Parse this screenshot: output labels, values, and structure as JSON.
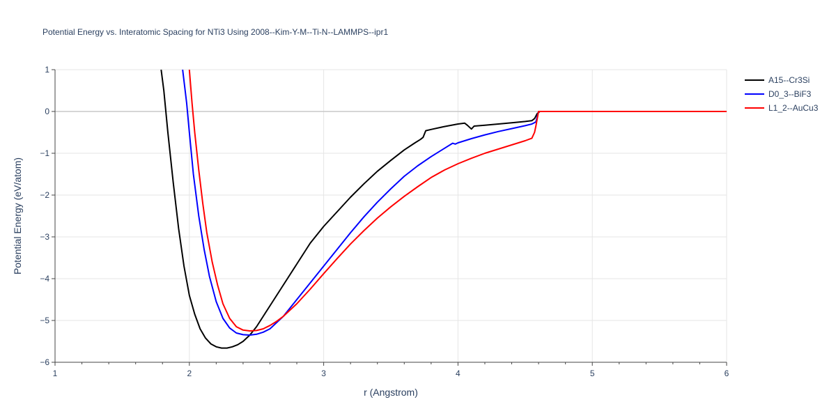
{
  "chart_data": {
    "type": "line",
    "title": "Potential Energy vs. Interatomic Spacing for NTi3 Using 2008--Kim-Y-M--Ti-N--LAMMPS--ipr1",
    "xlabel": "r (Angstrom)",
    "ylabel": "Potential Energy (eV/atom)",
    "xlim": [
      1,
      6
    ],
    "ylim": [
      -6,
      1
    ],
    "xticks": [
      1,
      2,
      3,
      4,
      5,
      6
    ],
    "xtick_labels": [
      "1",
      "2",
      "3",
      "4",
      "5",
      "6"
    ],
    "yticks": [
      1,
      0,
      -1,
      -2,
      -3,
      -4,
      -5,
      -6
    ],
    "ytick_labels": [
      "1",
      "0",
      "−1",
      "−2",
      "−3",
      "−4",
      "−5",
      "−6"
    ],
    "grid": true,
    "legend_position": "top-right",
    "series": [
      {
        "name": "A15--Cr3Si",
        "color": "#000000",
        "x": [
          1.79,
          1.81,
          1.84,
          1.88,
          1.92,
          1.96,
          2.0,
          2.04,
          2.08,
          2.12,
          2.16,
          2.2,
          2.24,
          2.28,
          2.32,
          2.36,
          2.4,
          2.45,
          2.5,
          2.55,
          2.6,
          2.7,
          2.8,
          2.9,
          3.0,
          3.1,
          3.2,
          3.3,
          3.4,
          3.5,
          3.6,
          3.68,
          3.72,
          3.74,
          3.76,
          3.8,
          3.9,
          4.0,
          4.05,
          4.07,
          4.1,
          4.12,
          4.2,
          4.3,
          4.4,
          4.5,
          4.55,
          4.57,
          4.59,
          4.61,
          5.0,
          5.5,
          6.0
        ],
        "y": [
          1.0,
          0.5,
          -0.5,
          -1.7,
          -2.8,
          -3.7,
          -4.4,
          -4.85,
          -5.2,
          -5.42,
          -5.56,
          -5.63,
          -5.66,
          -5.66,
          -5.63,
          -5.58,
          -5.5,
          -5.35,
          -5.15,
          -4.9,
          -4.65,
          -4.15,
          -3.65,
          -3.15,
          -2.75,
          -2.4,
          -2.05,
          -1.73,
          -1.43,
          -1.17,
          -0.92,
          -0.75,
          -0.67,
          -0.62,
          -0.46,
          -0.43,
          -0.36,
          -0.3,
          -0.28,
          -0.33,
          -0.42,
          -0.35,
          -0.33,
          -0.3,
          -0.27,
          -0.24,
          -0.22,
          -0.17,
          -0.05,
          0.0,
          0.0,
          0.0,
          0.0
        ]
      },
      {
        "name": "D0_3--BiF3",
        "color": "#0000ff",
        "x": [
          1.95,
          1.98,
          2.0,
          2.03,
          2.07,
          2.11,
          2.15,
          2.2,
          2.25,
          2.3,
          2.35,
          2.4,
          2.45,
          2.5,
          2.55,
          2.6,
          2.7,
          2.8,
          2.9,
          3.0,
          3.1,
          3.2,
          3.3,
          3.4,
          3.5,
          3.6,
          3.7,
          3.8,
          3.9,
          3.96,
          3.98,
          4.0,
          4.1,
          4.2,
          4.3,
          4.4,
          4.5,
          4.55,
          4.58,
          4.6,
          5.0,
          5.5,
          6.0
        ],
        "y": [
          1.0,
          0.2,
          -0.5,
          -1.5,
          -2.5,
          -3.3,
          -3.95,
          -4.55,
          -4.95,
          -5.18,
          -5.3,
          -5.34,
          -5.35,
          -5.33,
          -5.28,
          -5.2,
          -4.9,
          -4.5,
          -4.1,
          -3.7,
          -3.3,
          -2.9,
          -2.52,
          -2.17,
          -1.85,
          -1.55,
          -1.3,
          -1.08,
          -0.88,
          -0.76,
          -0.78,
          -0.75,
          -0.65,
          -0.56,
          -0.48,
          -0.41,
          -0.34,
          -0.3,
          -0.25,
          0.0,
          0.0,
          0.0,
          0.0
        ]
      },
      {
        "name": "L1_2--AuCu3",
        "color": "#ff0000",
        "x": [
          2.0,
          2.02,
          2.04,
          2.07,
          2.1,
          2.13,
          2.17,
          2.21,
          2.25,
          2.3,
          2.35,
          2.4,
          2.45,
          2.5,
          2.55,
          2.6,
          2.65,
          2.7,
          2.8,
          2.9,
          3.0,
          3.1,
          3.2,
          3.3,
          3.4,
          3.5,
          3.6,
          3.7,
          3.8,
          3.9,
          4.0,
          4.1,
          4.2,
          4.3,
          4.4,
          4.5,
          4.55,
          4.57,
          4.58,
          4.6,
          5.0,
          5.5,
          6.0
        ],
        "y": [
          1.0,
          0.2,
          -0.5,
          -1.4,
          -2.2,
          -2.9,
          -3.6,
          -4.15,
          -4.6,
          -4.95,
          -5.15,
          -5.23,
          -5.25,
          -5.24,
          -5.2,
          -5.12,
          -5.02,
          -4.9,
          -4.6,
          -4.25,
          -3.88,
          -3.52,
          -3.17,
          -2.85,
          -2.55,
          -2.28,
          -2.03,
          -1.8,
          -1.58,
          -1.4,
          -1.25,
          -1.12,
          -1.0,
          -0.9,
          -0.8,
          -0.7,
          -0.64,
          -0.5,
          -0.35,
          0.0,
          0.0,
          0.0,
          0.0
        ]
      }
    ]
  }
}
